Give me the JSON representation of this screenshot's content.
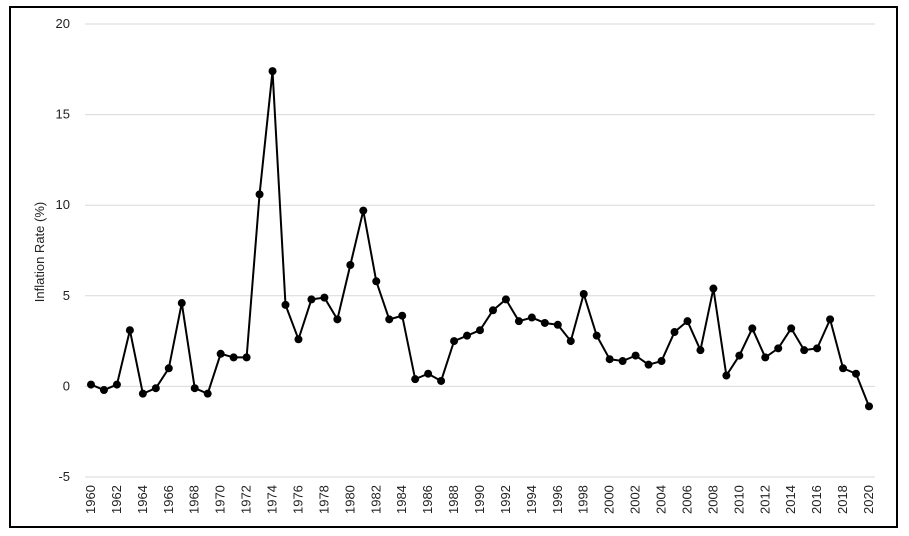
{
  "chart_data": {
    "type": "line",
    "title": "",
    "xlabel": "",
    "ylabel": "Inflation Rate (%)",
    "ylim": [
      -5,
      20
    ],
    "yticks": [
      -5,
      0,
      5,
      10,
      15,
      20
    ],
    "grid": "horizontal",
    "line_color": "#000000",
    "marker_color": "#000000",
    "x": [
      1960,
      1961,
      1962,
      1963,
      1964,
      1965,
      1966,
      1967,
      1968,
      1969,
      1970,
      1971,
      1972,
      1973,
      1974,
      1975,
      1976,
      1977,
      1978,
      1979,
      1980,
      1981,
      1982,
      1983,
      1984,
      1985,
      1986,
      1987,
      1988,
      1989,
      1990,
      1991,
      1992,
      1993,
      1994,
      1995,
      1996,
      1997,
      1998,
      1999,
      2000,
      2001,
      2002,
      2003,
      2004,
      2005,
      2006,
      2007,
      2008,
      2009,
      2010,
      2011,
      2012,
      2013,
      2014,
      2015,
      2016,
      2017,
      2018,
      2019,
      2020
    ],
    "values": [
      0.1,
      -0.2,
      0.1,
      3.1,
      -0.4,
      -0.1,
      1.0,
      4.6,
      -0.1,
      -0.4,
      1.8,
      1.6,
      1.6,
      10.6,
      17.4,
      4.5,
      2.6,
      4.8,
      4.9,
      3.7,
      6.7,
      9.7,
      5.8,
      3.7,
      3.9,
      0.4,
      0.7,
      0.3,
      2.5,
      2.8,
      3.1,
      4.2,
      4.8,
      3.6,
      3.8,
      3.5,
      3.4,
      2.5,
      5.1,
      2.8,
      1.5,
      1.4,
      1.7,
      1.2,
      1.4,
      3.0,
      3.6,
      2.0,
      5.4,
      0.6,
      1.7,
      3.2,
      1.6,
      2.1,
      3.2,
      2.0,
      2.1,
      3.7,
      1.0,
      0.7,
      -1.1
    ],
    "xtick_labels": [
      "1960",
      "1962",
      "1964",
      "1966",
      "1968",
      "1970",
      "1972",
      "1974",
      "1976",
      "1978",
      "1980",
      "1982",
      "1984",
      "1986",
      "1988",
      "1990",
      "1992",
      "1994",
      "1996",
      "1998",
      "2000",
      "2002",
      "2004",
      "2006",
      "2008",
      "2010",
      "2012",
      "2014",
      "2016",
      "2018",
      "2020"
    ]
  }
}
